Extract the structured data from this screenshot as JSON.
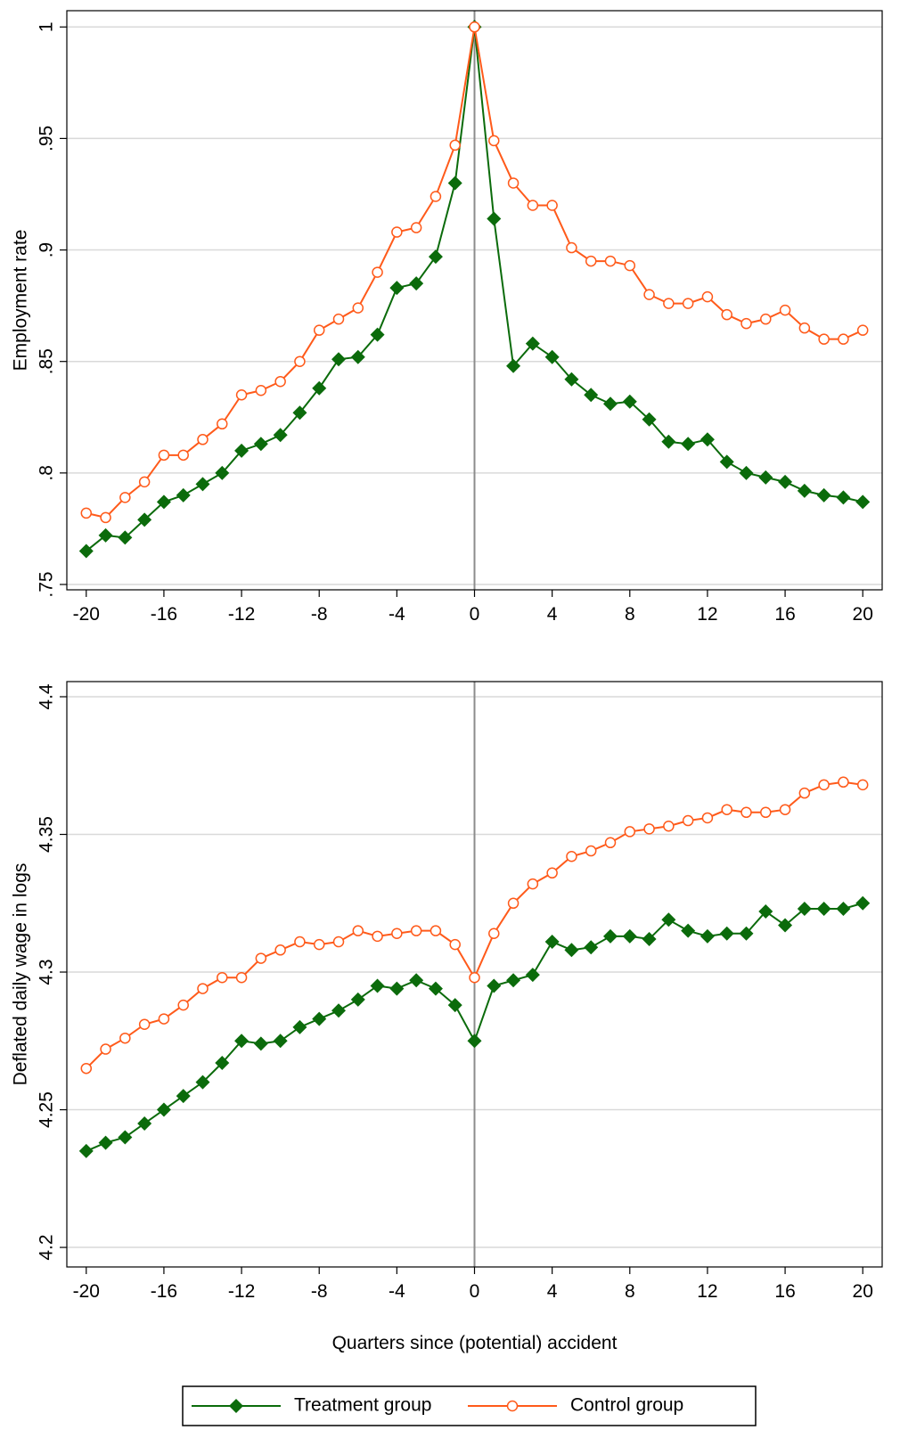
{
  "chart_data": [
    {
      "type": "line",
      "ylabel": "Employment rate",
      "x": [
        -20,
        -19,
        -18,
        -17,
        -16,
        -15,
        -14,
        -13,
        -12,
        -11,
        -10,
        -9,
        -8,
        -7,
        -6,
        -5,
        -4,
        -3,
        -2,
        -1,
        0,
        1,
        2,
        3,
        4,
        5,
        6,
        7,
        8,
        9,
        10,
        11,
        12,
        13,
        14,
        15,
        16,
        17,
        18,
        19,
        20
      ],
      "series": [
        {
          "color": "#0b6b0b",
          "marker": "diamond",
          "values": [
            0.765,
            0.772,
            0.771,
            0.779,
            0.787,
            0.79,
            0.795,
            0.8,
            0.81,
            0.813,
            0.817,
            0.827,
            0.838,
            0.851,
            0.852,
            0.862,
            0.883,
            0.885,
            0.897,
            0.93,
            1,
            0.914,
            0.848,
            0.858,
            0.852,
            0.842,
            0.835,
            0.831,
            0.832,
            0.824,
            0.814,
            0.813,
            0.815,
            0.805,
            0.8,
            0.798,
            0.796,
            0.792,
            0.79,
            0.789,
            0.787
          ]
        },
        {
          "color": "#ff5a1a",
          "marker": "circle",
          "values": [
            0.782,
            0.78,
            0.789,
            0.796,
            0.808,
            0.808,
            0.815,
            0.822,
            0.835,
            0.837,
            0.841,
            0.85,
            0.864,
            0.869,
            0.874,
            0.89,
            0.908,
            0.91,
            0.924,
            0.947,
            1,
            0.949,
            0.93,
            0.92,
            0.92,
            0.901,
            0.895,
            0.895,
            0.893,
            0.88,
            0.876,
            0.876,
            0.879,
            0.871,
            0.867,
            0.869,
            0.873,
            0.865,
            0.86,
            0.86,
            0.864
          ]
        }
      ],
      "xlim": [
        -21,
        21
      ],
      "xticks": [
        -20,
        -16,
        -12,
        -8,
        -4,
        0,
        4,
        8,
        12,
        16,
        20
      ],
      "ylim": [
        0.7476,
        1.0073
      ],
      "yticks": [
        {
          "value": 0.75,
          "label": ".75"
        },
        {
          "value": 0.8,
          "label": ".8"
        },
        {
          "value": 0.85,
          "label": ".85"
        },
        {
          "value": 0.9,
          "label": ".9"
        },
        {
          "value": 0.95,
          "label": ".95"
        },
        1
      ],
      "grid": true,
      "vline": 0
    },
    {
      "type": "line",
      "ylabel": "Deflated daily wage in logs",
      "xlabel": "Quarters since (potential) accident",
      "x": [
        -20,
        -19,
        -18,
        -17,
        -16,
        -15,
        -14,
        -13,
        -12,
        -11,
        -10,
        -9,
        -8,
        -7,
        -6,
        -5,
        -4,
        -3,
        -2,
        -1,
        0,
        1,
        2,
        3,
        4,
        5,
        6,
        7,
        8,
        9,
        10,
        11,
        12,
        13,
        14,
        15,
        16,
        17,
        18,
        19,
        20
      ],
      "series": [
        {
          "name": "Treatment group",
          "color": "#0b6b0b",
          "marker": "diamond",
          "values": [
            4.235,
            4.238,
            4.24,
            4.245,
            4.25,
            4.255,
            4.26,
            4.267,
            4.275,
            4.274,
            4.275,
            4.28,
            4.283,
            4.286,
            4.29,
            4.295,
            4.294,
            4.297,
            4.294,
            4.288,
            4.275,
            4.295,
            4.297,
            4.299,
            4.311,
            4.308,
            4.309,
            4.313,
            4.313,
            4.312,
            4.319,
            4.315,
            4.313,
            4.314,
            4.314,
            4.322,
            4.317,
            4.323,
            4.323,
            4.323,
            4.325
          ]
        },
        {
          "name": "Control group",
          "color": "#ff5a1a",
          "marker": "circle",
          "values": [
            4.265,
            4.272,
            4.276,
            4.281,
            4.283,
            4.288,
            4.294,
            4.298,
            4.298,
            4.305,
            4.308,
            4.311,
            4.31,
            4.311,
            4.315,
            4.313,
            4.314,
            4.315,
            4.315,
            4.31,
            4.298,
            4.314,
            4.325,
            4.332,
            4.336,
            4.342,
            4.344,
            4.347,
            4.351,
            4.352,
            4.353,
            4.355,
            4.356,
            4.359,
            4.358,
            4.358,
            4.359,
            4.365,
            4.368,
            4.369,
            4.368
          ]
        }
      ],
      "xlim": [
        -21,
        21
      ],
      "xticks": [
        -20,
        -16,
        -12,
        -8,
        -4,
        0,
        4,
        8,
        12,
        16,
        20
      ],
      "ylim": [
        4.1929,
        4.4055
      ],
      "yticks": [
        4.2,
        4.25,
        4.3,
        4.35,
        4.4
      ],
      "grid": true,
      "vline": 0
    }
  ]
}
